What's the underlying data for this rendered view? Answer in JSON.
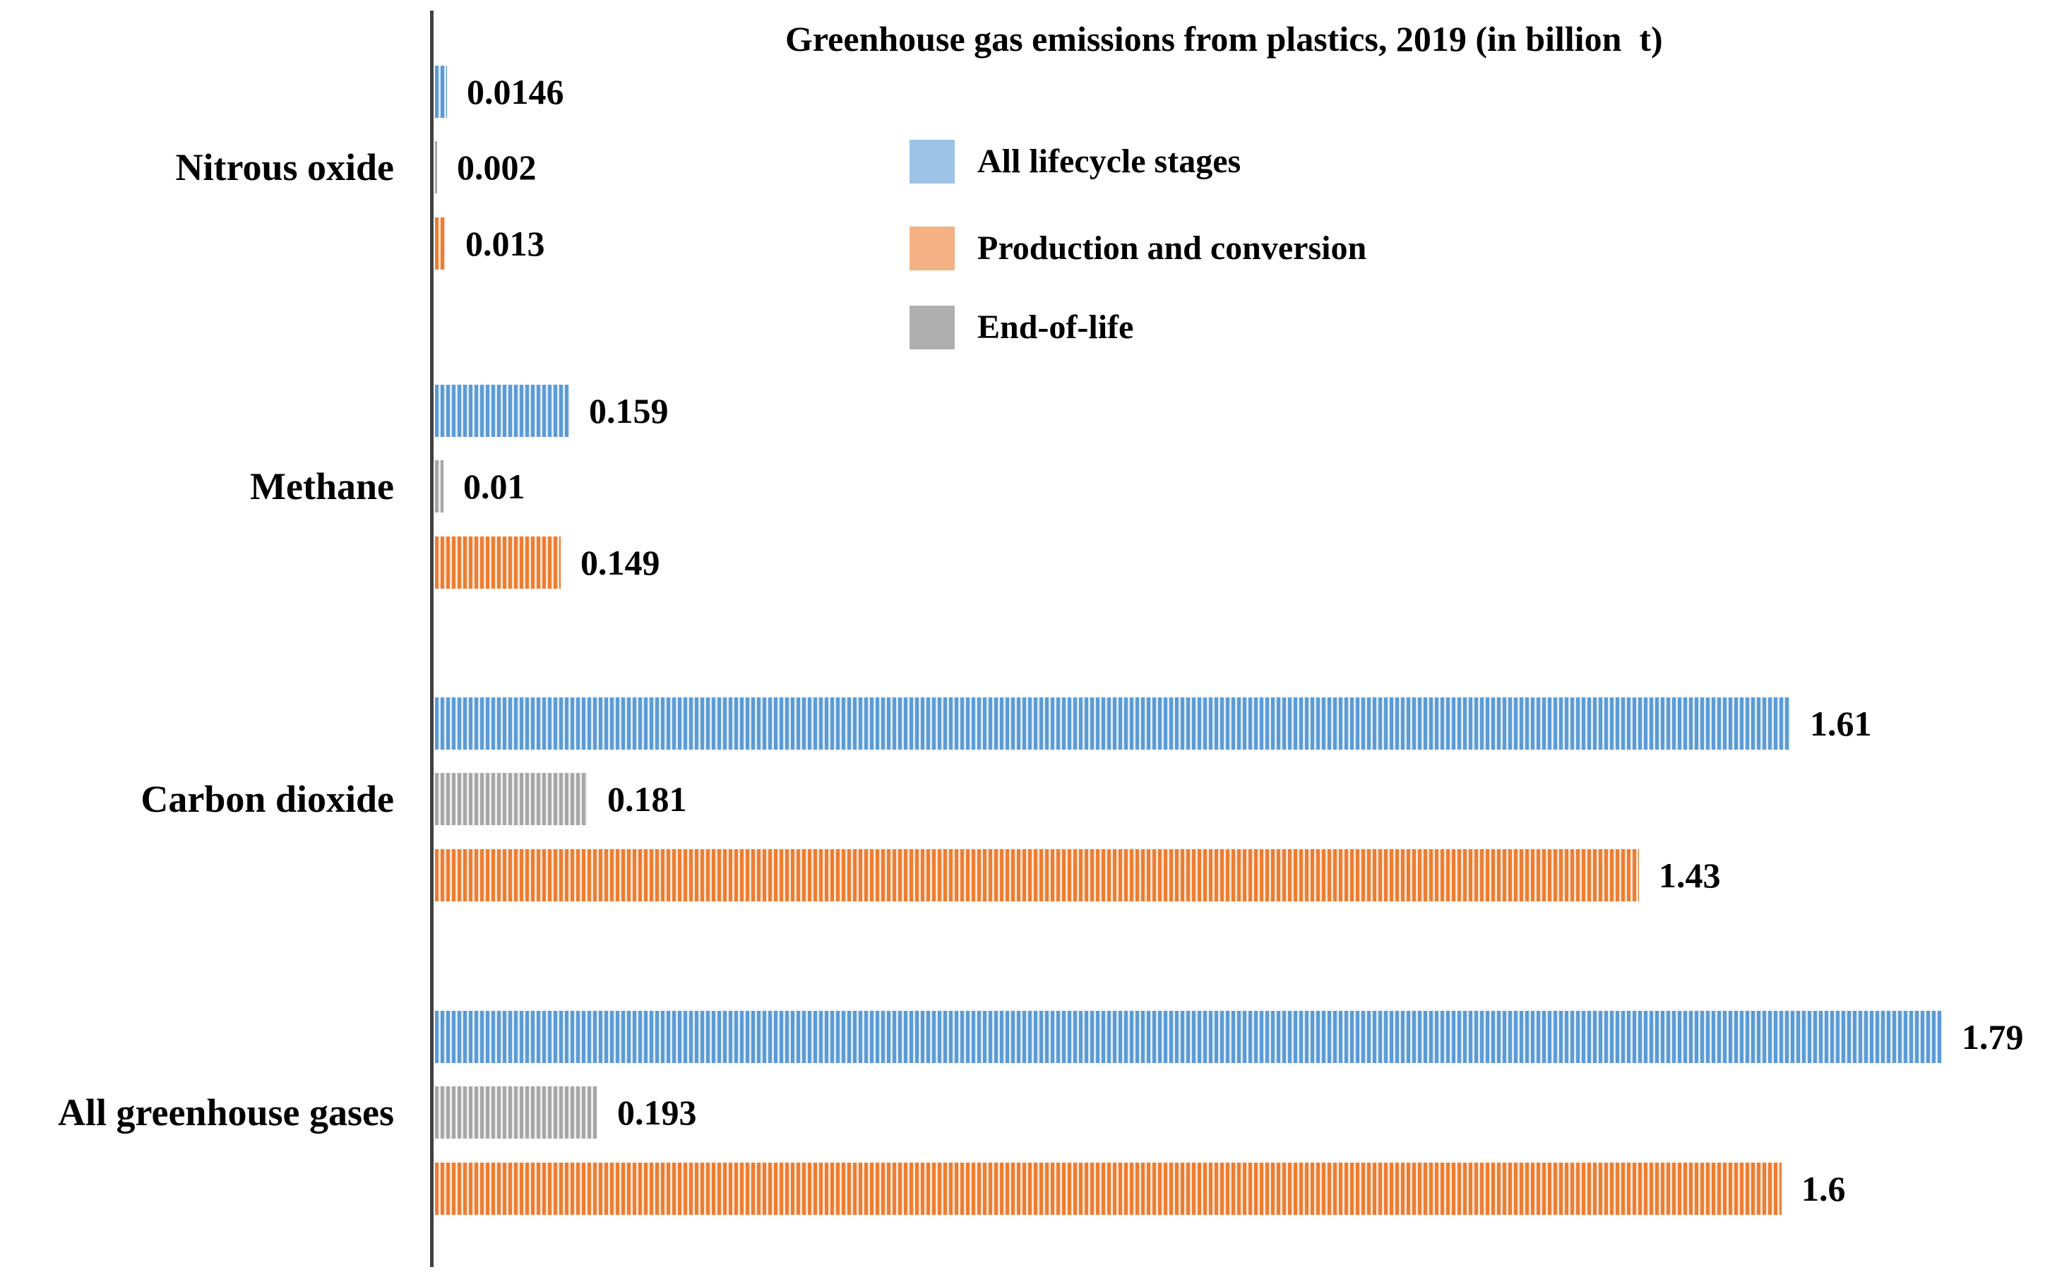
{
  "chart_data": {
    "type": "bar",
    "orientation": "horizontal",
    "title": "Greenhouse gas emissions from plastics, 2019 (in billion  t)",
    "categories": [
      "Nitrous oxide",
      "Methane",
      "Carbon dioxide",
      "All greenhouse gases"
    ],
    "series": [
      {
        "name": "All lifecycle stages",
        "values": [
          0.0146,
          0.159,
          1.61,
          1.79
        ],
        "value_labels": [
          "0.0146",
          "0.159",
          "1.61",
          "1.79"
        ],
        "bar_color": "#5B9BD5",
        "bar_stripe_light": "#DCE9F6",
        "legend_color": "#9DC3E6"
      },
      {
        "name": "Production and conversion",
        "values": [
          0.013,
          0.149,
          1.43,
          1.6
        ],
        "value_labels": [
          "0.013",
          "0.149",
          "1.43",
          "1.6"
        ],
        "bar_color": "#ED7D31",
        "bar_stripe_light": "#FAE3D3",
        "legend_color": "#F4B183"
      },
      {
        "name": "End-of-life",
        "values": [
          0.002,
          0.01,
          0.181,
          0.193
        ],
        "value_labels": [
          "0.002",
          "0.01",
          "0.181",
          "0.193"
        ],
        "bar_color": "#A6A6A6",
        "bar_stripe_light": "#EDEDED",
        "legend_color": "#AFAFAF"
      }
    ],
    "row_order_within_group_top_to_bottom": [
      "All lifecycle stages",
      "End-of-life",
      "Production and conversion"
    ],
    "legend_position": "top-center",
    "legend_order": [
      "All lifecycle stages",
      "Production and conversion",
      "End-of-life"
    ],
    "x_axis": {
      "min": 0,
      "max": 1.9,
      "gridlines": false,
      "tick_labels_visible": false
    },
    "value_labels_visible": true,
    "axis_line_color": "#404040",
    "text_color": "#000000"
  }
}
